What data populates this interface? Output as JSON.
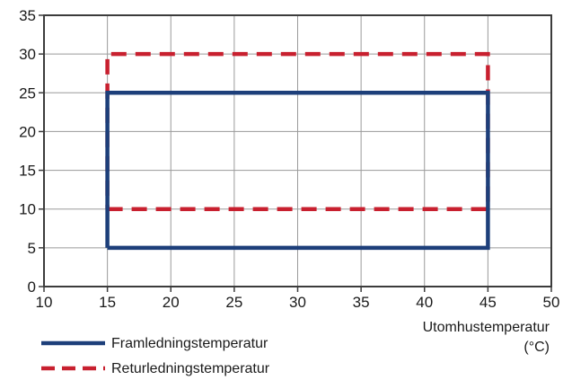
{
  "chart_data": {
    "type": "line",
    "title": "",
    "xlabel_lines": [
      "Utomhustemperatur",
      "(°C)"
    ],
    "ylabel": "",
    "xlim": [
      10,
      50
    ],
    "ylim": [
      0,
      35
    ],
    "x_ticks": [
      10,
      15,
      20,
      25,
      30,
      35,
      40,
      45,
      50
    ],
    "y_ticks": [
      0,
      5,
      10,
      15,
      20,
      25,
      30,
      35
    ],
    "grid": true,
    "legend_position": "bottom-left",
    "series": [
      {
        "name": "Framledningstemperatur",
        "color": "#1d3f7a",
        "style": "solid",
        "x": [
          15,
          45,
          45,
          15,
          15
        ],
        "y": [
          5,
          5,
          25,
          25,
          5
        ]
      },
      {
        "name": "Returledningstemperatur",
        "color": "#c8202f",
        "style": "dashed",
        "x": [
          15,
          45,
          45,
          15,
          15
        ],
        "y": [
          10,
          10,
          30,
          30,
          10
        ]
      }
    ]
  }
}
